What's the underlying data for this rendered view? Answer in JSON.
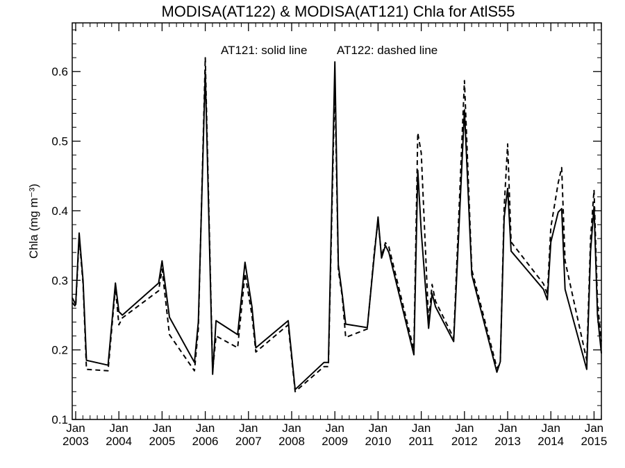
{
  "chart_data": {
    "type": "line",
    "title": "MODISA(AT122) & MODISA(AT121)  Chla for AtlS55",
    "xlabel": "",
    "ylabel": "Chla (mg m⁻³)",
    "ylim": [
      0.1,
      0.67
    ],
    "xlim": [
      2002.92,
      2015.17
    ],
    "yticks": [
      0.1,
      0.2,
      0.3,
      0.4,
      0.5,
      0.6
    ],
    "ytick_labels": [
      "0.1",
      "0.2",
      "0.3",
      "0.4",
      "0.5",
      "0.6"
    ],
    "xticks": [
      {
        "value": 2003,
        "month": "Jan",
        "year": "2003"
      },
      {
        "value": 2004,
        "month": "Jan",
        "year": "2004"
      },
      {
        "value": 2005,
        "month": "Jan",
        "year": "2005"
      },
      {
        "value": 2006,
        "month": "Jan",
        "year": "2006"
      },
      {
        "value": 2007,
        "month": "Jan",
        "year": "2007"
      },
      {
        "value": 2008,
        "month": "Jan",
        "year": "2008"
      },
      {
        "value": 2009,
        "month": "Jan",
        "year": "2009"
      },
      {
        "value": 2010,
        "month": "Jan",
        "year": "2010"
      },
      {
        "value": 2011,
        "month": "Jan",
        "year": "2011"
      },
      {
        "value": 2012,
        "month": "Jan",
        "year": "2012"
      },
      {
        "value": 2013,
        "month": "Jan",
        "year": "2013"
      },
      {
        "value": 2014,
        "month": "Jan",
        "year": "2014"
      },
      {
        "value": 2015,
        "month": "Jan",
        "year": "2015"
      }
    ],
    "grid": false,
    "annotations": [
      "AT121: solid line",
      "AT122: dashed line"
    ],
    "series": [
      {
        "name": "AT121",
        "style": "solid",
        "color": "#000000",
        "points": [
          [
            2002.92,
            0.275
          ],
          [
            2003.0,
            0.265
          ],
          [
            2003.08,
            0.368
          ],
          [
            2003.17,
            0.3
          ],
          [
            2003.25,
            0.185
          ],
          [
            2003.75,
            0.178
          ],
          [
            2003.92,
            0.296
          ],
          [
            2004.0,
            0.255
          ],
          [
            2004.08,
            0.25
          ],
          [
            2004.92,
            0.296
          ],
          [
            2005.0,
            0.328
          ],
          [
            2005.17,
            0.247
          ],
          [
            2005.75,
            0.182
          ],
          [
            2005.84,
            0.24
          ],
          [
            2006.0,
            0.6
          ],
          [
            2006.17,
            0.165
          ],
          [
            2006.25,
            0.242
          ],
          [
            2006.75,
            0.222
          ],
          [
            2006.92,
            0.326
          ],
          [
            2007.08,
            0.262
          ],
          [
            2007.17,
            0.203
          ],
          [
            2007.92,
            0.242
          ],
          [
            2008.08,
            0.143
          ],
          [
            2008.75,
            0.182
          ],
          [
            2008.85,
            0.182
          ],
          [
            2009.0,
            0.614
          ],
          [
            2009.08,
            0.322
          ],
          [
            2009.17,
            0.28
          ],
          [
            2009.25,
            0.237
          ],
          [
            2009.75,
            0.232
          ],
          [
            2009.92,
            0.34
          ],
          [
            2010.0,
            0.391
          ],
          [
            2010.08,
            0.332
          ],
          [
            2010.17,
            0.35
          ],
          [
            2010.25,
            0.34
          ],
          [
            2010.83,
            0.193
          ],
          [
            2010.92,
            0.458
          ],
          [
            2011.0,
            0.37
          ],
          [
            2011.17,
            0.231
          ],
          [
            2011.25,
            0.281
          ],
          [
            2011.33,
            0.262
          ],
          [
            2011.75,
            0.212
          ],
          [
            2012.0,
            0.545
          ],
          [
            2012.17,
            0.308
          ],
          [
            2012.75,
            0.168
          ],
          [
            2012.83,
            0.183
          ],
          [
            2012.92,
            0.39
          ],
          [
            2013.0,
            0.432
          ],
          [
            2013.08,
            0.342
          ],
          [
            2013.83,
            0.287
          ],
          [
            2013.92,
            0.272
          ],
          [
            2014.0,
            0.355
          ],
          [
            2014.17,
            0.398
          ],
          [
            2014.25,
            0.403
          ],
          [
            2014.33,
            0.287
          ],
          [
            2014.83,
            0.172
          ],
          [
            2014.92,
            0.342
          ],
          [
            2015.0,
            0.406
          ],
          [
            2015.08,
            0.25
          ],
          [
            2015.17,
            0.195
          ]
        ]
      },
      {
        "name": "AT122",
        "style": "dashed",
        "color": "#000000",
        "points": [
          [
            2002.92,
            0.268
          ],
          [
            2003.0,
            0.262
          ],
          [
            2003.08,
            0.362
          ],
          [
            2003.17,
            0.295
          ],
          [
            2003.25,
            0.172
          ],
          [
            2003.75,
            0.17
          ],
          [
            2003.92,
            0.29
          ],
          [
            2004.0,
            0.236
          ],
          [
            2004.08,
            0.246
          ],
          [
            2004.92,
            0.285
          ],
          [
            2005.0,
            0.316
          ],
          [
            2005.17,
            0.222
          ],
          [
            2005.75,
            0.17
          ],
          [
            2005.84,
            0.23
          ],
          [
            2006.0,
            0.62
          ],
          [
            2006.17,
            0.17
          ],
          [
            2006.25,
            0.22
          ],
          [
            2006.75,
            0.203
          ],
          [
            2006.92,
            0.31
          ],
          [
            2007.08,
            0.25
          ],
          [
            2007.17,
            0.197
          ],
          [
            2007.92,
            0.236
          ],
          [
            2008.08,
            0.14
          ],
          [
            2008.75,
            0.176
          ],
          [
            2008.85,
            0.176
          ],
          [
            2009.0,
            0.586
          ],
          [
            2009.08,
            0.315
          ],
          [
            2009.17,
            0.277
          ],
          [
            2009.25,
            0.218
          ],
          [
            2009.75,
            0.23
          ],
          [
            2009.92,
            0.345
          ],
          [
            2010.0,
            0.385
          ],
          [
            2010.08,
            0.335
          ],
          [
            2010.17,
            0.354
          ],
          [
            2010.25,
            0.348
          ],
          [
            2010.83,
            0.2
          ],
          [
            2010.92,
            0.512
          ],
          [
            2011.0,
            0.483
          ],
          [
            2011.17,
            0.24
          ],
          [
            2011.25,
            0.294
          ],
          [
            2011.33,
            0.27
          ],
          [
            2011.75,
            0.217
          ],
          [
            2012.0,
            0.587
          ],
          [
            2012.17,
            0.315
          ],
          [
            2012.75,
            0.174
          ],
          [
            2012.83,
            0.18
          ],
          [
            2012.92,
            0.405
          ],
          [
            2013.0,
            0.496
          ],
          [
            2013.08,
            0.355
          ],
          [
            2013.83,
            0.295
          ],
          [
            2013.92,
            0.28
          ],
          [
            2014.0,
            0.376
          ],
          [
            2014.17,
            0.44
          ],
          [
            2014.25,
            0.462
          ],
          [
            2014.33,
            0.328
          ],
          [
            2014.83,
            0.185
          ],
          [
            2014.92,
            0.36
          ],
          [
            2015.0,
            0.43
          ],
          [
            2015.08,
            0.268
          ],
          [
            2015.17,
            0.212
          ]
        ]
      }
    ]
  }
}
